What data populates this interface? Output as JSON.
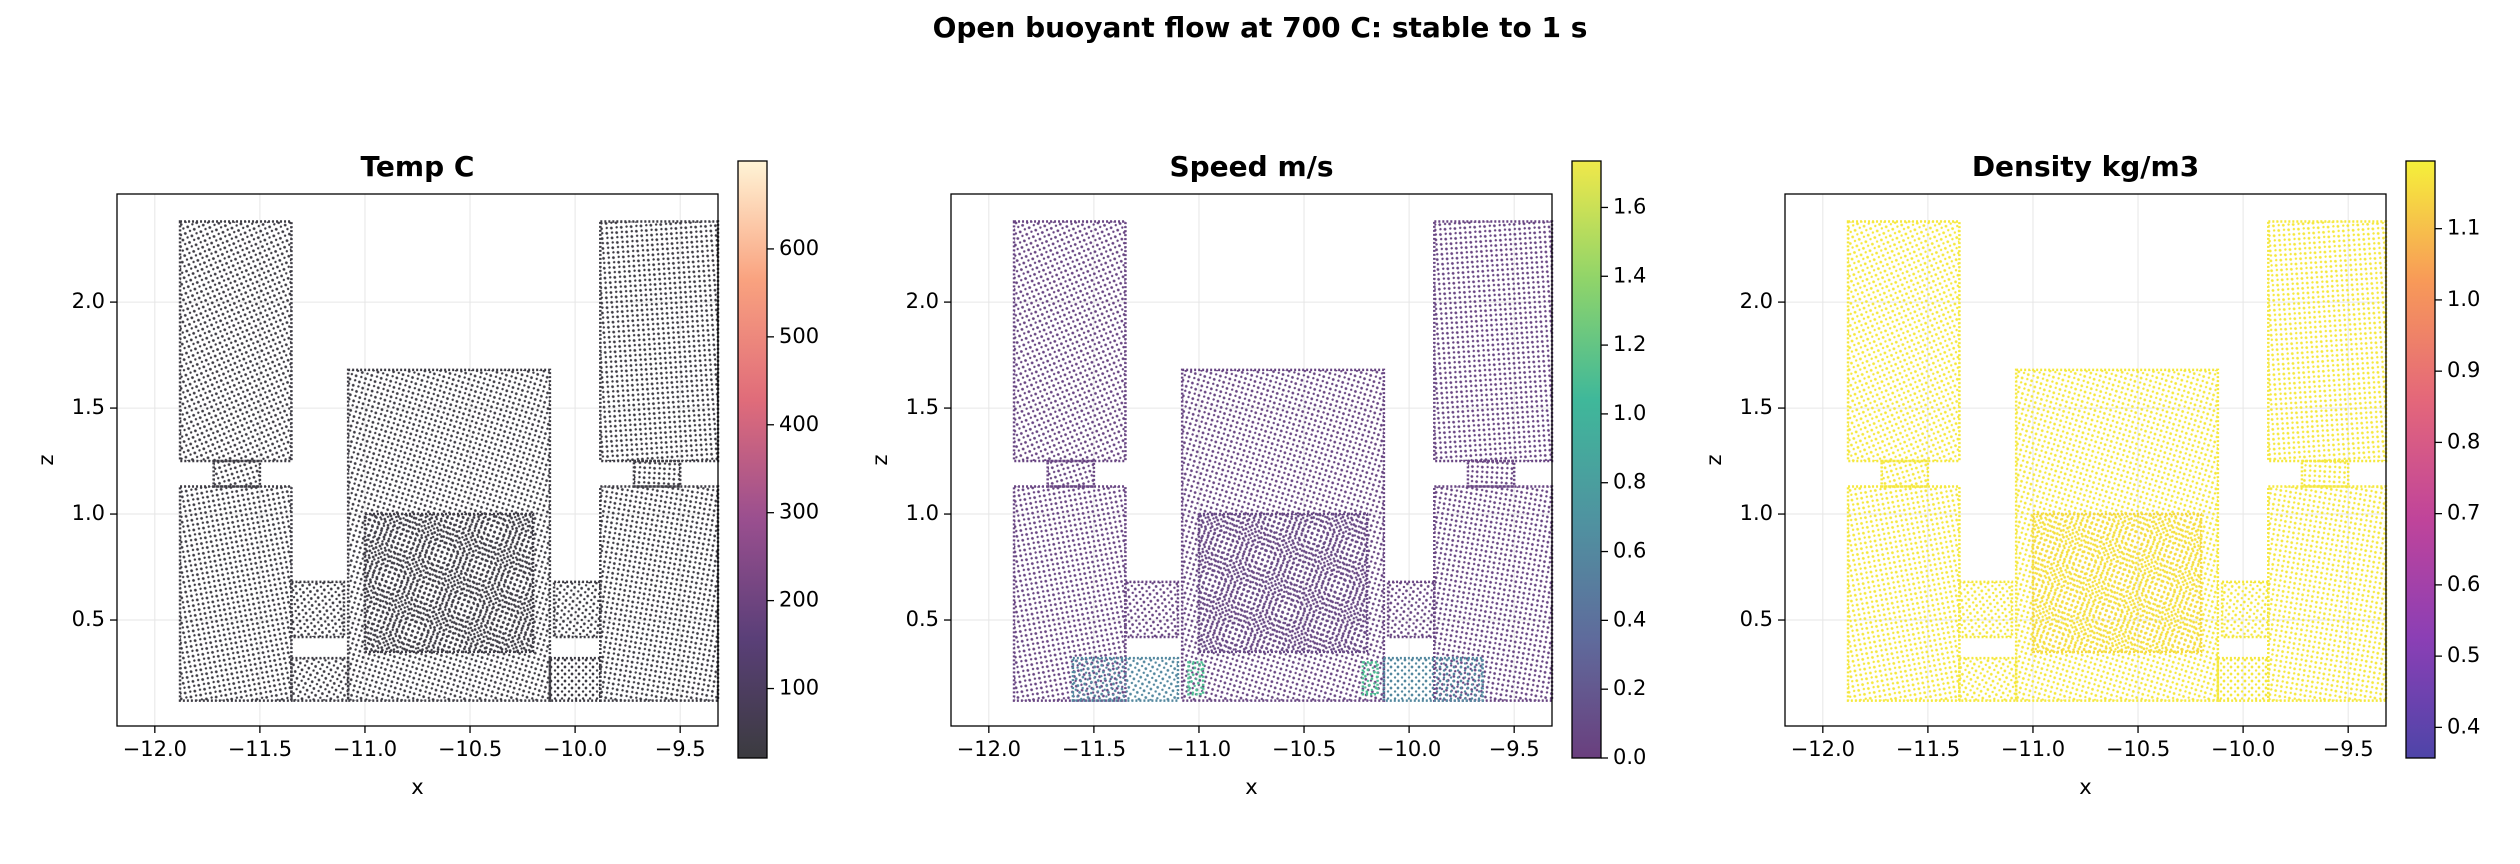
{
  "title": "Open buoyant flow at 700 C: stable to 1 s",
  "chart_data": [
    {
      "type": "scatter",
      "title": "Temp C",
      "xlabel": "x",
      "ylabel": "z",
      "xlim": [
        -12.18,
        -9.32
      ],
      "ylim": [
        0,
        2.51
      ],
      "xticks": [
        {
          "value": -12.0,
          "label": "−12.0"
        },
        {
          "value": -11.5,
          "label": "−11.5"
        },
        {
          "value": -11.0,
          "label": "−11.0"
        },
        {
          "value": -10.5,
          "label": "−10.5"
        },
        {
          "value": -10.0,
          "label": "−10.0"
        },
        {
          "value": -9.5,
          "label": "−9.5"
        }
      ],
      "yticks": [
        0.5,
        {
          "value": 1.0,
          "label": "1.0"
        },
        1.5,
        {
          "value": 2.0,
          "label": "2.0"
        }
      ],
      "grid": true,
      "colorbar": {
        "lim": [
          21,
          700
        ],
        "ticks": [
          100,
          200,
          300,
          400,
          500,
          600
        ],
        "colors": [
          "#3b3b3f",
          "#5a3f78",
          "#9a4f8f",
          "#e06c7a",
          "#f9a27f",
          "#fff4d6"
        ]
      },
      "regions": [
        {
          "x": [
            -11.88,
            -11.35
          ],
          "z": [
            1.25,
            2.38
          ],
          "value": 30
        },
        {
          "x": [
            -11.72,
            -11.5
          ],
          "z": [
            1.13,
            1.25
          ],
          "value": 30
        },
        {
          "x": [
            -11.88,
            -11.35
          ],
          "z": [
            0.12,
            1.13
          ],
          "value": 30
        },
        {
          "x": [
            -9.88,
            -9.32
          ],
          "z": [
            1.25,
            2.38
          ],
          "value": 30
        },
        {
          "x": [
            -9.72,
            -9.5
          ],
          "z": [
            1.13,
            1.25
          ],
          "value": 30
        },
        {
          "x": [
            -9.88,
            -9.32
          ],
          "z": [
            0.12,
            1.13
          ],
          "value": 30
        },
        {
          "x": [
            -11.08,
            -10.12
          ],
          "z": [
            0.12,
            1.68
          ],
          "value": 30
        },
        {
          "x": [
            -11.0,
            -10.2
          ],
          "z": [
            0.35,
            1.0
          ],
          "value": 35
        },
        {
          "x": [
            -11.35,
            -11.08
          ],
          "z": [
            0.12,
            0.32
          ],
          "value": 30
        },
        {
          "x": [
            -11.35,
            -11.1
          ],
          "z": [
            0.42,
            0.68
          ],
          "value": 30
        },
        {
          "x": [
            -10.12,
            -9.88
          ],
          "z": [
            0.12,
            0.32
          ],
          "value": 30
        },
        {
          "x": [
            -10.1,
            -9.88
          ],
          "z": [
            0.42,
            0.68
          ],
          "value": 30
        }
      ]
    },
    {
      "type": "scatter",
      "title": "Speed m/s",
      "xlabel": "x",
      "ylabel": "z",
      "xlim": [
        -12.18,
        -9.32
      ],
      "ylim": [
        0,
        2.51
      ],
      "xticks": [
        {
          "value": -12.0,
          "label": "−12.0"
        },
        {
          "value": -11.5,
          "label": "−11.5"
        },
        {
          "value": -11.0,
          "label": "−11.0"
        },
        {
          "value": -10.5,
          "label": "−10.5"
        },
        {
          "value": -10.0,
          "label": "−10.0"
        },
        {
          "value": -9.5,
          "label": "−9.5"
        }
      ],
      "yticks": [
        0.5,
        {
          "value": 1.0,
          "label": "1.0"
        },
        1.5,
        {
          "value": 2.0,
          "label": "2.0"
        }
      ],
      "grid": true,
      "colorbar": {
        "lim": [
          0,
          1.735
        ],
        "ticks": [
          {
            "value": 0.0,
            "label": "0.0"
          },
          0.2,
          0.4,
          0.6,
          0.8,
          {
            "value": 1.0,
            "label": "1.0"
          },
          1.2,
          1.4,
          1.6
        ],
        "colors": [
          "#6a3f7e",
          "#5f6b9c",
          "#4f93a0",
          "#3fb89a",
          "#8fd46a",
          "#f0e84a"
        ]
      },
      "regions": [
        {
          "x": [
            -11.88,
            -11.35
          ],
          "z": [
            1.25,
            2.38
          ],
          "value": 0.05
        },
        {
          "x": [
            -11.72,
            -11.5
          ],
          "z": [
            1.13,
            1.25
          ],
          "value": 0.05
        },
        {
          "x": [
            -11.88,
            -11.35
          ],
          "z": [
            0.12,
            1.13
          ],
          "value": 0.05
        },
        {
          "x": [
            -9.88,
            -9.32
          ],
          "z": [
            1.25,
            2.38
          ],
          "value": 0.05
        },
        {
          "x": [
            -9.72,
            -9.5
          ],
          "z": [
            1.13,
            1.25
          ],
          "value": 0.05
        },
        {
          "x": [
            -9.88,
            -9.32
          ],
          "z": [
            0.12,
            1.13
          ],
          "value": 0.05
        },
        {
          "x": [
            -11.08,
            -10.12
          ],
          "z": [
            0.12,
            1.68
          ],
          "value": 0.05
        },
        {
          "x": [
            -11.0,
            -10.2
          ],
          "z": [
            0.35,
            1.0
          ],
          "value": 0.08
        },
        {
          "x": [
            -11.6,
            -11.1
          ],
          "z": [
            0.12,
            0.32
          ],
          "value": 0.6
        },
        {
          "x": [
            -11.35,
            -11.1
          ],
          "z": [
            0.42,
            0.68
          ],
          "value": 0.05
        },
        {
          "x": [
            -10.12,
            -9.65
          ],
          "z": [
            0.12,
            0.32
          ],
          "value": 0.6
        },
        {
          "x": [
            -10.1,
            -9.88
          ],
          "z": [
            0.42,
            0.68
          ],
          "value": 0.05
        },
        {
          "x": [
            -11.05,
            -10.98
          ],
          "z": [
            0.15,
            0.3
          ],
          "value": 1.1
        },
        {
          "x": [
            -10.22,
            -10.15
          ],
          "z": [
            0.15,
            0.3
          ],
          "value": 1.1
        }
      ]
    },
    {
      "type": "scatter",
      "title": "Density kg/m3",
      "xlabel": "x",
      "ylabel": "z",
      "xlim": [
        -12.18,
        -9.32
      ],
      "ylim": [
        0,
        2.51
      ],
      "xticks": [
        {
          "value": -12.0,
          "label": "−12.0"
        },
        {
          "value": -11.5,
          "label": "−11.5"
        },
        {
          "value": -11.0,
          "label": "−11.0"
        },
        {
          "value": -10.5,
          "label": "−10.5"
        },
        {
          "value": -10.0,
          "label": "−10.0"
        },
        {
          "value": -9.5,
          "label": "−9.5"
        }
      ],
      "yticks": [
        0.5,
        {
          "value": 1.0,
          "label": "1.0"
        },
        1.5,
        {
          "value": 2.0,
          "label": "2.0"
        }
      ],
      "grid": true,
      "colorbar": {
        "lim": [
          0.357,
          1.195
        ],
        "ticks": [
          0.4,
          0.5,
          0.6,
          0.7,
          0.8,
          0.9,
          {
            "value": 1.0,
            "label": "1.0"
          },
          1.1
        ],
        "colors": [
          "#4e45a8",
          "#8b3fb5",
          "#c0449a",
          "#e4677a",
          "#f89a58",
          "#f5f03a"
        ]
      },
      "regions": [
        {
          "x": [
            -11.88,
            -11.35
          ],
          "z": [
            1.25,
            2.38
          ],
          "value": 1.18
        },
        {
          "x": [
            -11.72,
            -11.5
          ],
          "z": [
            1.13,
            1.25
          ],
          "value": 1.18
        },
        {
          "x": [
            -11.88,
            -11.35
          ],
          "z": [
            0.12,
            1.13
          ],
          "value": 1.18
        },
        {
          "x": [
            -9.88,
            -9.32
          ],
          "z": [
            1.25,
            2.38
          ],
          "value": 1.18
        },
        {
          "x": [
            -9.72,
            -9.5
          ],
          "z": [
            1.13,
            1.25
          ],
          "value": 1.18
        },
        {
          "x": [
            -9.88,
            -9.32
          ],
          "z": [
            0.12,
            1.13
          ],
          "value": 1.18
        },
        {
          "x": [
            -11.08,
            -10.12
          ],
          "z": [
            0.12,
            1.68
          ],
          "value": 1.18
        },
        {
          "x": [
            -11.0,
            -10.2
          ],
          "z": [
            0.35,
            1.0
          ],
          "value": 1.15
        },
        {
          "x": [
            -11.35,
            -11.08
          ],
          "z": [
            0.12,
            0.32
          ],
          "value": 1.18
        },
        {
          "x": [
            -11.35,
            -11.1
          ],
          "z": [
            0.42,
            0.68
          ],
          "value": 1.18
        },
        {
          "x": [
            -10.12,
            -9.88
          ],
          "z": [
            0.12,
            0.32
          ],
          "value": 1.18
        },
        {
          "x": [
            -10.1,
            -9.88
          ],
          "z": [
            0.42,
            0.68
          ],
          "value": 1.18
        }
      ]
    }
  ]
}
